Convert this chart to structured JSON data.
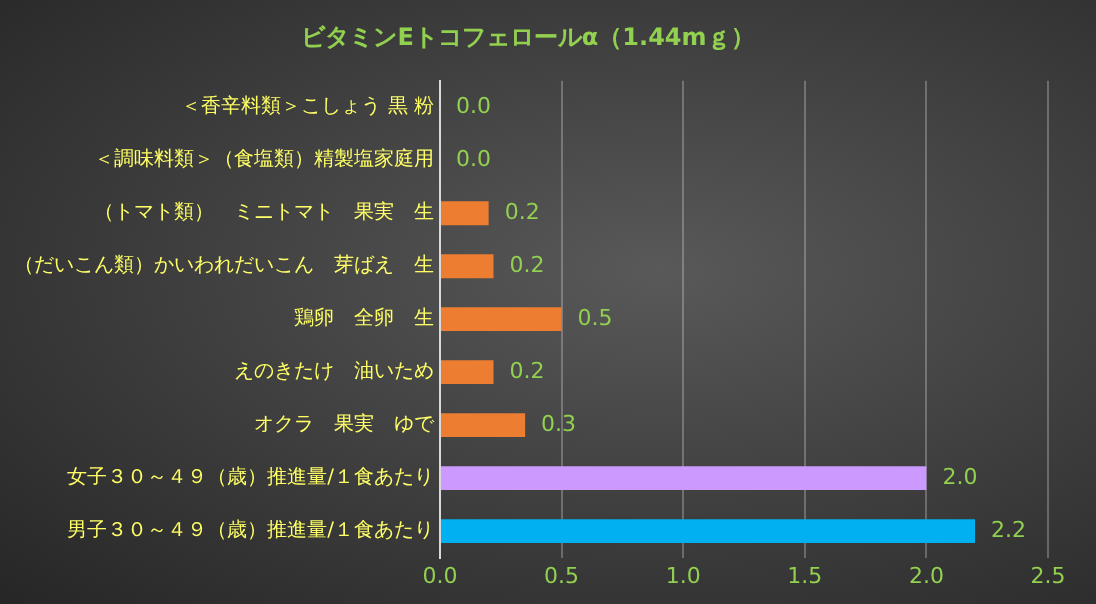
{
  "chart_data": {
    "type": "bar",
    "orientation": "horizontal",
    "title": "ビタミンEトコフェロールα（1.44mｇ）",
    "categories": [
      "＜香辛料類＞こしょう 黒 粉",
      "＜調味料類＞（食塩類）精製塩家庭用",
      "（トマト類）　ミニトマト　果実　生",
      "（だいこん類）かいわれだいこん　芽ばえ　生",
      "鶏卵　全卵　生",
      "えのきたけ　油いため",
      "オクラ　果実　ゆで",
      "女子３０～４９（歳）推進量/１食あたり",
      "男子３０～４９（歳）推進量/１食あたり"
    ],
    "values": [
      0,
      0,
      0.2,
      0.22,
      0.5,
      0.22,
      0.35,
      2.0,
      2.2
    ],
    "value_labels": [
      "0.0",
      "0.0",
      "0.2",
      "0.2",
      "0.5",
      "0.2",
      "0.3",
      "2.0",
      "2.2"
    ],
    "colors": [
      "#ed7d31",
      "#ed7d31",
      "#ed7d31",
      "#ed7d31",
      "#ed7d31",
      "#ed7d31",
      "#ed7d31",
      "#cc99ff",
      "#00b0f0"
    ],
    "xlim": [
      0,
      2.5
    ],
    "xticks": [
      {
        "value": 0,
        "label": "0.0"
      },
      {
        "value": 0.5,
        "label": "0.5"
      },
      {
        "value": 1,
        "label": "1.0"
      },
      {
        "value": 1.5,
        "label": "1.5"
      },
      {
        "value": 2,
        "label": "2.0"
      },
      {
        "value": 2.5,
        "label": "2.5"
      }
    ],
    "grid": "x",
    "legend": false
  }
}
